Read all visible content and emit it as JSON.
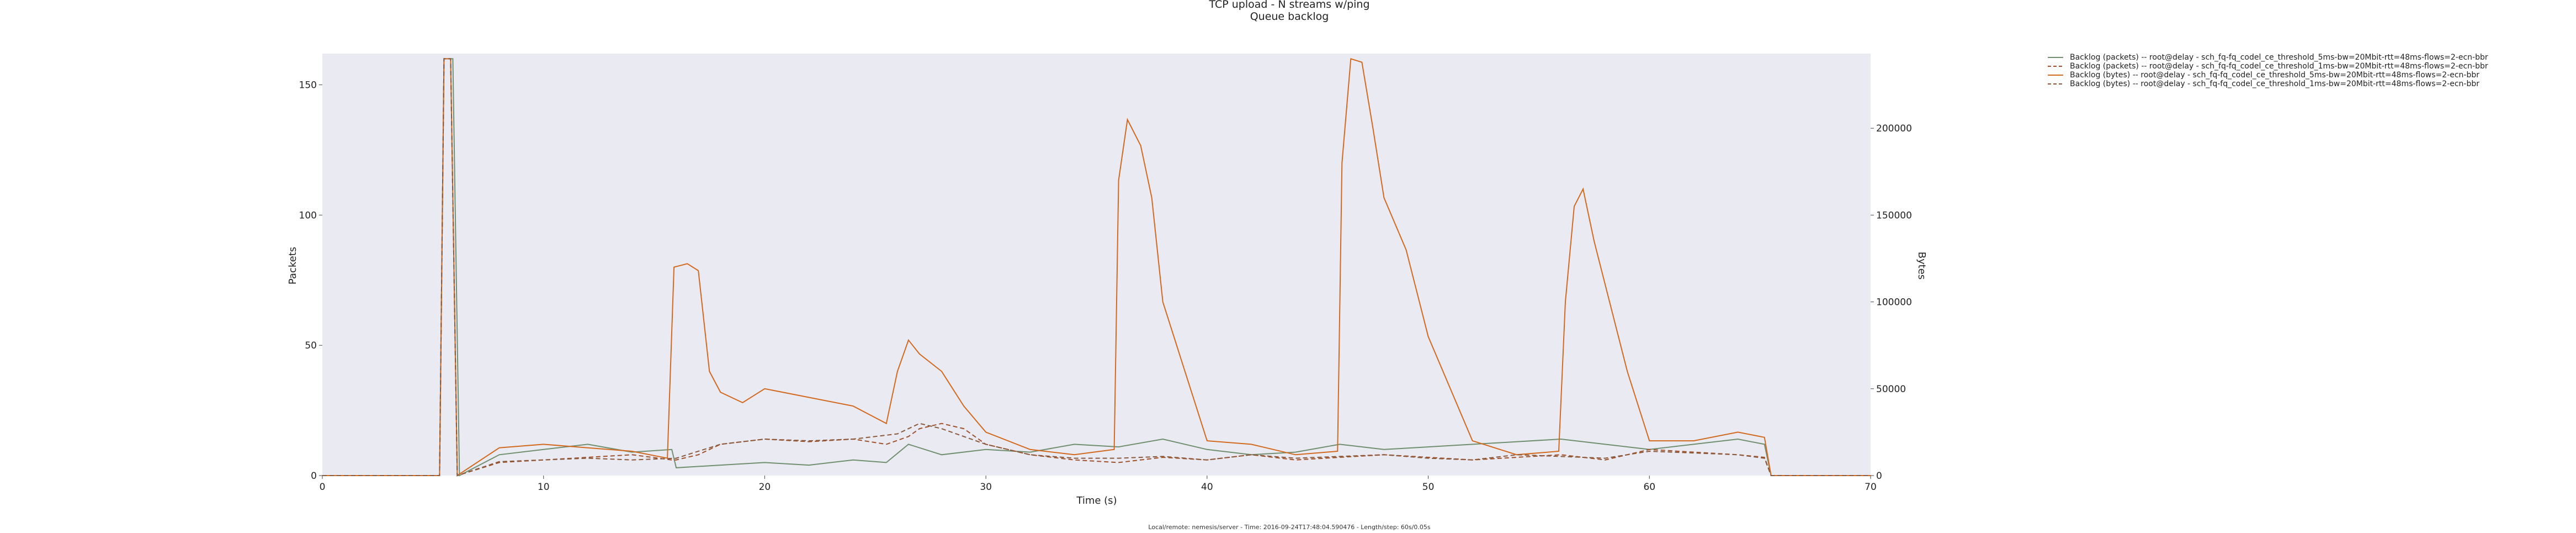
{
  "chart_data": {
    "type": "line",
    "title": "TCP upload - N streams w/ping",
    "subtitle": "Queue backlog",
    "xlabel": "Time (s)",
    "ylabel_left": "Packets",
    "ylabel_right": "Bytes",
    "xlim": [
      0,
      70
    ],
    "ylim_left": [
      0,
      162
    ],
    "ylim_right": [
      0,
      243000
    ],
    "xticks": [
      "0",
      "10",
      "20",
      "30",
      "40",
      "50",
      "60",
      "70"
    ],
    "yticks_left": [
      "0",
      "50",
      "100",
      "150"
    ],
    "yticks_right": [
      "0",
      "50000",
      "100000",
      "150000",
      "200000"
    ],
    "grid": false,
    "legend_position": "outside-top-right",
    "footer": "Local/remote: nemesis/server - Time: 2016-09-24T17:48:04.590476 - Length/step: 60s/0.05s",
    "series": [
      {
        "name": "Backlog (packets) -- root@delay - sch_fq-fq_codel_ce_threshold_5ms-bw=20Mbit-rtt=48ms-flows=2-ecn-bbr",
        "axis": "left",
        "color": "#6f8f6f",
        "dash": "solid",
        "x": [
          0,
          5.3,
          5.5,
          5.9,
          6.2,
          8,
          10,
          12,
          14,
          15.8,
          16,
          18,
          20,
          22,
          24,
          25.5,
          26.5,
          28,
          30,
          32,
          34,
          36,
          38,
          40,
          42,
          44,
          46,
          48,
          50,
          52,
          54,
          56,
          58,
          60,
          62,
          64,
          65.2,
          65.5,
          70
        ],
        "y": [
          0,
          0,
          160,
          160,
          0,
          8,
          10,
          12,
          9,
          10,
          3,
          4,
          5,
          4,
          6,
          5,
          12,
          8,
          10,
          9,
          12,
          11,
          14,
          10,
          8,
          9,
          12,
          10,
          11,
          12,
          13,
          14,
          12,
          10,
          12,
          14,
          12,
          0,
          0
        ]
      },
      {
        "name": "Backlog (packets) -- root@delay - sch_fq-fq_codel_ce_threshold_1ms-bw=20Mbit-rtt=48ms-flows=2-ecn-bbr",
        "axis": "left",
        "color": "#a0522d",
        "dash": "dashed",
        "x": [
          0,
          5.3,
          5.5,
          5.8,
          6.1,
          8,
          10,
          12,
          14,
          15.8,
          16,
          17,
          18,
          20,
          22,
          24,
          25.5,
          26.5,
          27,
          28,
          29,
          30,
          32,
          34,
          36,
          38,
          40,
          42,
          44,
          46,
          48,
          50,
          52,
          54,
          56,
          58,
          60,
          62,
          64,
          65.2,
          65.5,
          70
        ],
        "y": [
          0,
          0,
          160,
          160,
          0,
          5,
          6,
          7,
          8,
          6,
          6,
          8,
          12,
          14,
          13,
          14,
          12,
          15,
          18,
          20,
          18,
          12,
          8,
          6,
          5,
          7,
          6,
          8,
          6,
          7,
          8,
          7,
          6,
          7,
          8,
          6,
          10,
          9,
          8,
          7,
          0,
          0
        ]
      },
      {
        "name": "Backlog (bytes) -- root@delay - sch_fq-fq_codel_ce_threshold_5ms-bw=20Mbit-rtt=48ms-flows=2-ecn-bbr",
        "axis": "right",
        "color": "#d2691e",
        "dash": "solid",
        "x": [
          0,
          5.3,
          5.5,
          5.8,
          6.1,
          8,
          10,
          12,
          14,
          15.6,
          15.9,
          16.5,
          17,
          17.5,
          18,
          19,
          20,
          22,
          24,
          25.5,
          26,
          26.5,
          27,
          28,
          29,
          30,
          32,
          34,
          35.8,
          36,
          36.4,
          37,
          37.5,
          38,
          39,
          40,
          42,
          44,
          45.9,
          46.1,
          46.5,
          47,
          47.5,
          48,
          49,
          50,
          52,
          54,
          55.9,
          56.2,
          56.6,
          57,
          57.5,
          58,
          59,
          60,
          62,
          64,
          65.2,
          65.5,
          70
        ],
        "y": [
          0,
          0,
          240000,
          240000,
          0,
          16000,
          18000,
          16000,
          14000,
          10000,
          120000,
          122000,
          118000,
          60000,
          48000,
          42000,
          50000,
          45000,
          40000,
          30000,
          60000,
          78000,
          70000,
          60000,
          40000,
          25000,
          15000,
          12000,
          15000,
          170000,
          205000,
          190000,
          160000,
          100000,
          60000,
          20000,
          18000,
          12000,
          14000,
          180000,
          240000,
          238000,
          200000,
          160000,
          130000,
          80000,
          20000,
          12000,
          14000,
          100000,
          155000,
          165000,
          135000,
          110000,
          60000,
          20000,
          20000,
          25000,
          22000,
          0,
          0
        ]
      },
      {
        "name": "Backlog (bytes) -- root@delay - sch_fq-fq_codel_ce_threshold_1ms-bw=20Mbit-rtt=48ms-flows=2-ecn-bbr",
        "axis": "right",
        "color": "#8b5a3c",
        "dash": "dashed",
        "x": [
          0,
          5.3,
          5.5,
          5.8,
          6.1,
          8,
          10,
          12,
          14,
          16,
          18,
          20,
          22,
          24,
          26,
          27,
          28,
          30,
          32,
          34,
          36,
          38,
          40,
          42,
          44,
          46,
          48,
          50,
          52,
          54,
          56,
          58,
          60,
          62,
          64,
          65.2,
          65.5,
          70
        ],
        "y": [
          0,
          0,
          240000,
          240000,
          0,
          8000,
          9000,
          10000,
          9000,
          10000,
          18000,
          21000,
          20000,
          21000,
          24000,
          30000,
          27000,
          18000,
          12000,
          10000,
          10000,
          11000,
          9000,
          12000,
          10000,
          11000,
          12000,
          10000,
          9000,
          12000,
          11000,
          10000,
          14000,
          13000,
          12000,
          10000,
          0,
          0
        ]
      }
    ]
  }
}
